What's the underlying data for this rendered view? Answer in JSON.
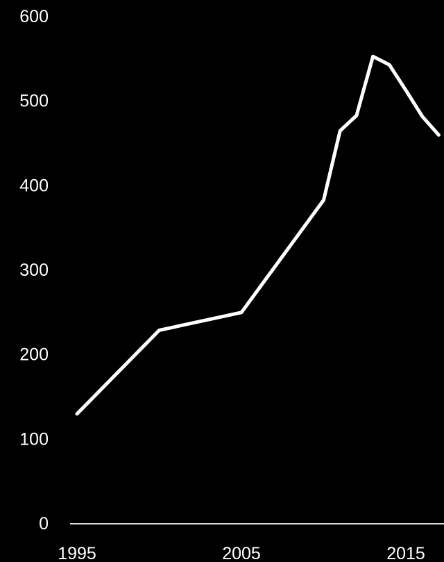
{
  "chart_data": {
    "type": "line",
    "title": "",
    "xlabel": "",
    "ylabel": "",
    "xlim": [
      1995,
      2017.2
    ],
    "ylim": [
      0,
      600
    ],
    "x_ticks": [
      1995,
      2005,
      2015
    ],
    "y_ticks": [
      0,
      100,
      200,
      300,
      400,
      500,
      600
    ],
    "grid": false,
    "legend": "none",
    "series": [
      {
        "color": "#ffffff",
        "x": [
          1995,
          2000,
          2005,
          2010,
          2011,
          2012,
          2013,
          2014,
          2015,
          2016,
          2017
        ],
        "y": [
          130,
          229,
          250,
          383,
          465,
          483,
          553,
          543,
          513,
          482,
          460
        ]
      }
    ],
    "colors": {
      "background": "#000000",
      "line": "#ffffff",
      "text": "#ffffff"
    }
  }
}
